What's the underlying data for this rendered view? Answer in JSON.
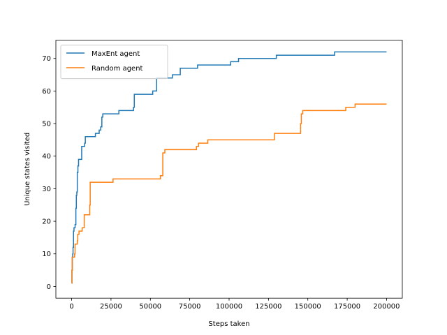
{
  "chart_data": {
    "type": "line",
    "title": "",
    "xlabel": "Steps taken",
    "ylabel": "Unique states visited",
    "xlim": [
      -10000,
      210000
    ],
    "ylim": [
      -3.6,
      75.6
    ],
    "xticks": [
      0,
      25000,
      50000,
      75000,
      100000,
      125000,
      150000,
      175000,
      200000
    ],
    "yticks": [
      0,
      10,
      20,
      30,
      40,
      50,
      60,
      70
    ],
    "xtick_labels": [
      "0",
      "25000",
      "50000",
      "75000",
      "100000",
      "125000",
      "150000",
      "175000",
      "200000"
    ],
    "ytick_labels": [
      "0",
      "10",
      "20",
      "30",
      "40",
      "50",
      "60",
      "70"
    ],
    "grid": false,
    "legend_position": "top-left",
    "series": [
      {
        "name": "MaxEnt agent",
        "color": "#1f77b4",
        "points": [
          [
            0,
            1
          ],
          [
            200,
            5
          ],
          [
            400,
            9
          ],
          [
            700,
            10
          ],
          [
            900,
            12
          ],
          [
            1200,
            17
          ],
          [
            1500,
            18
          ],
          [
            2200,
            19
          ],
          [
            2700,
            24
          ],
          [
            3000,
            28
          ],
          [
            3300,
            29
          ],
          [
            3600,
            35
          ],
          [
            4000,
            37
          ],
          [
            4400,
            39
          ],
          [
            6400,
            43
          ],
          [
            8300,
            44
          ],
          [
            8700,
            46
          ],
          [
            15100,
            47
          ],
          [
            17500,
            48
          ],
          [
            18500,
            49
          ],
          [
            19200,
            52
          ],
          [
            19800,
            53
          ],
          [
            30000,
            54
          ],
          [
            39300,
            55
          ],
          [
            39800,
            59
          ],
          [
            51500,
            60
          ],
          [
            54000,
            64
          ],
          [
            64000,
            65
          ],
          [
            69000,
            67
          ],
          [
            80000,
            68
          ],
          [
            101000,
            69
          ],
          [
            106000,
            70
          ],
          [
            130000,
            71
          ],
          [
            167000,
            72
          ],
          [
            200000,
            72
          ]
        ]
      },
      {
        "name": "Random agent",
        "color": "#ff7f0e",
        "points": [
          [
            0,
            1
          ],
          [
            200,
            5
          ],
          [
            500,
            9
          ],
          [
            1900,
            10
          ],
          [
            2200,
            13
          ],
          [
            3600,
            14
          ],
          [
            3900,
            16
          ],
          [
            4700,
            17
          ],
          [
            6700,
            18
          ],
          [
            8000,
            22
          ],
          [
            11500,
            25
          ],
          [
            11800,
            32
          ],
          [
            26300,
            33
          ],
          [
            56400,
            34
          ],
          [
            57900,
            41
          ],
          [
            59200,
            42
          ],
          [
            79300,
            43
          ],
          [
            80600,
            44
          ],
          [
            86500,
            45
          ],
          [
            128800,
            47
          ],
          [
            145400,
            50
          ],
          [
            145900,
            53
          ],
          [
            146800,
            54
          ],
          [
            174100,
            55
          ],
          [
            180000,
            56
          ],
          [
            200000,
            56
          ]
        ]
      }
    ]
  }
}
